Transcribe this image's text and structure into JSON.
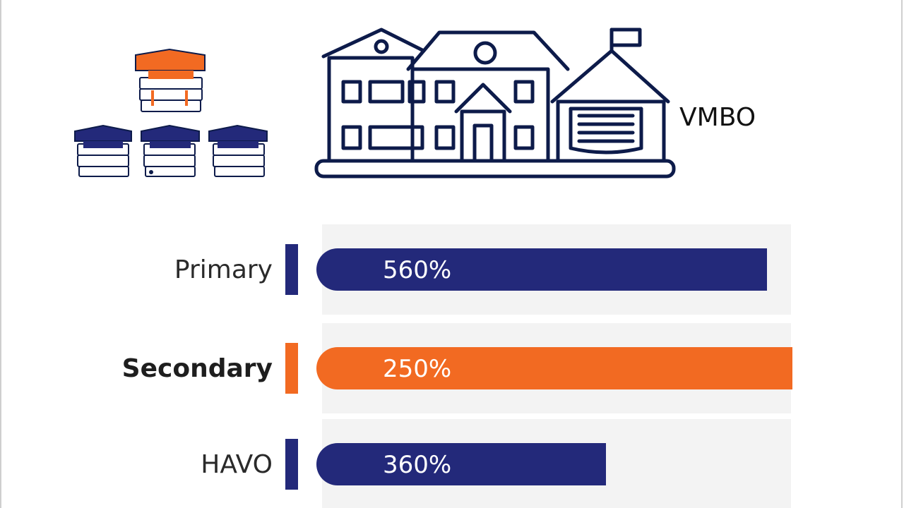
{
  "colors": {
    "navy": "#23297a",
    "orange": "#f26a22",
    "track": "#f3f3f3",
    "ink": "#0d1b4a"
  },
  "icons": [
    "graduation-caps-books-icon",
    "school-building-icon"
  ],
  "building_label": "VMBO",
  "chart_data": {
    "type": "bar",
    "orientation": "horizontal",
    "categories": [
      "Primary",
      "Secondary",
      "HAVO"
    ],
    "values": [
      560,
      250,
      360
    ],
    "value_labels": [
      "560%",
      "250%",
      "360%"
    ],
    "bar_colors": [
      "#23297a",
      "#f26a22",
      "#23297a"
    ],
    "highlight": "Secondary",
    "title": "",
    "xlabel": "",
    "ylabel": "",
    "grid": false,
    "legend": "none"
  }
}
